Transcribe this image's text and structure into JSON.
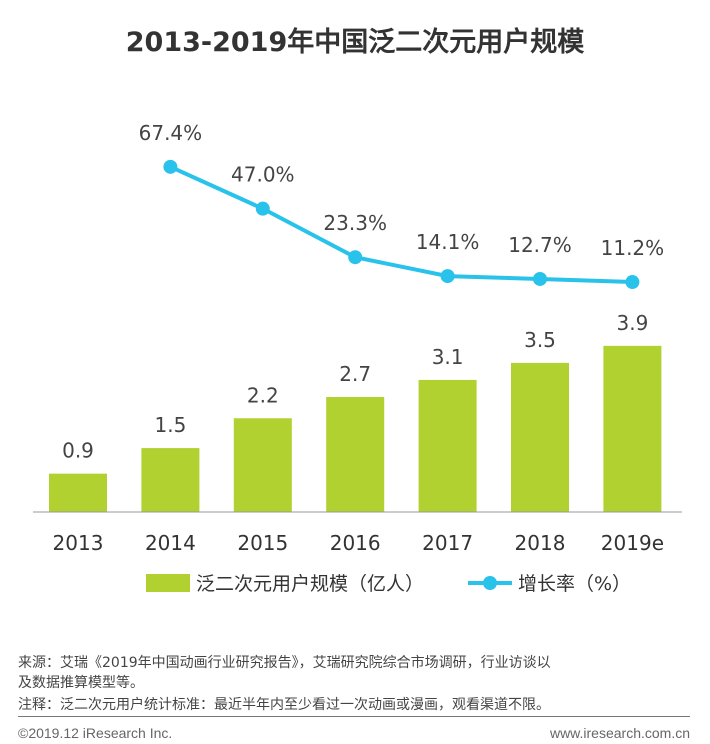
{
  "chart_data": {
    "type": "bar+line",
    "title": "2013-2019年中国泛二次元用户规模",
    "categories": [
      "2013",
      "2014",
      "2015",
      "2016",
      "2017",
      "2018",
      "2019e"
    ],
    "series": [
      {
        "name": "泛二次元用户规模（亿人）",
        "type": "bar",
        "color": "#b0d12f",
        "values": [
          0.9,
          1.5,
          2.2,
          2.7,
          3.1,
          3.5,
          3.9
        ],
        "labels": [
          "0.9",
          "1.5",
          "2.2",
          "2.7",
          "3.1",
          "3.5",
          "3.9"
        ]
      },
      {
        "name": "增长率（%）",
        "type": "line",
        "color": "#29c2ea",
        "values": [
          null,
          67.4,
          47.0,
          23.3,
          14.1,
          12.7,
          11.2
        ],
        "labels": [
          "",
          "67.4%",
          "47.0%",
          "23.3%",
          "14.1%",
          "12.7%",
          "11.2%"
        ]
      }
    ],
    "grid": false,
    "legend": "bottom"
  },
  "notes": {
    "source1": "来源：艾瑞《2019年中国动画行业研究报告》，艾瑞研究院综合市场调研，行业访谈以",
    "source2": "及数据推算模型等。",
    "note": "注释：泛二次元用户统计标准：最近半年内至少看过一次动画或漫画，观看渠道不限。",
    "copyright": "©2019.12 iResearch Inc.",
    "url": "www.iresearch.com.cn"
  }
}
